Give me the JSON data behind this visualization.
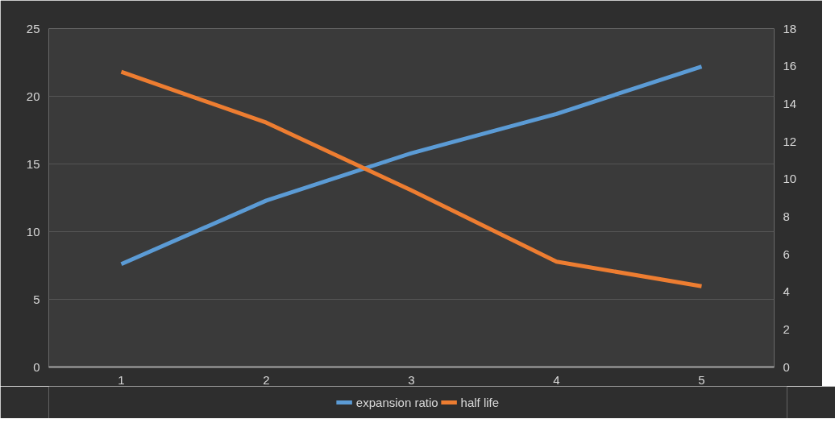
{
  "chart_data": {
    "type": "line",
    "categories": [
      "1",
      "2",
      "3",
      "4",
      "5"
    ],
    "series": [
      {
        "name": "expansion ratio",
        "color": "#5b9bd5",
        "values": [
          7.6,
          12.3,
          15.8,
          18.7,
          22.2
        ]
      },
      {
        "name": "half life",
        "color": "#ed7d31",
        "values": [
          15.7,
          13.0,
          9.4,
          5.6,
          4.3
        ],
        "axis": "y2"
      }
    ],
    "ylim": [
      0,
      25
    ],
    "yticks": [
      0,
      5,
      10,
      15,
      20,
      25
    ],
    "y2lim": [
      0,
      18
    ],
    "y2ticks": [
      0,
      2,
      4,
      6,
      8,
      10,
      12,
      14,
      16,
      18
    ],
    "grid": "y",
    "legend": "bottom",
    "marker": "none",
    "line_style": "solid"
  }
}
